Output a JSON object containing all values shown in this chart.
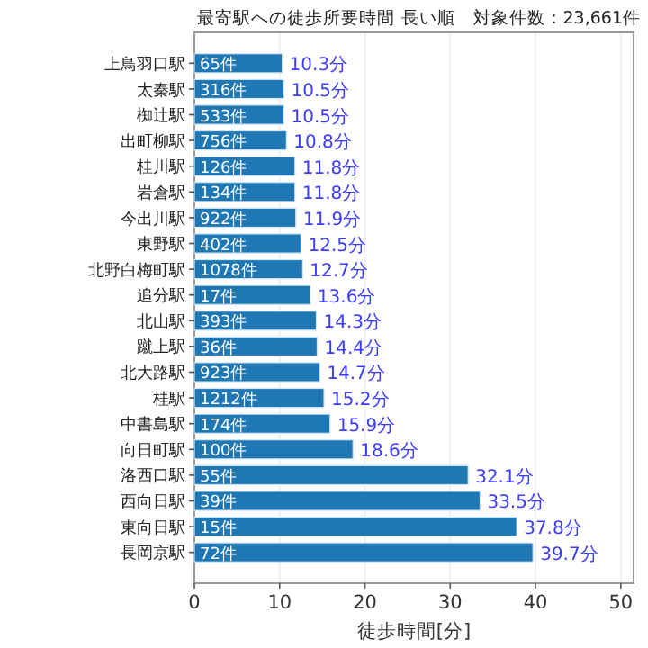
{
  "chart_data": {
    "type": "bar",
    "orientation": "horizontal",
    "title": "最寄駅への徒歩所要時間 長い順　対象件数：23,661件",
    "xlabel": "徒歩時間[分]",
    "categories": [
      "上鳥羽口駅",
      "太秦駅",
      "椥辻駅",
      "出町柳駅",
      "桂川駅",
      "岩倉駅",
      "今出川駅",
      "東野駅",
      "北野白梅町駅",
      "追分駅",
      "北山駅",
      "蹴上駅",
      "北大路駅",
      "桂駅",
      "中書島駅",
      "向日町駅",
      "洛西口駅",
      "西向日駅",
      "東向日駅",
      "長岡京駅"
    ],
    "values": [
      10.3,
      10.5,
      10.5,
      10.8,
      11.8,
      11.8,
      11.9,
      12.5,
      12.7,
      13.6,
      14.3,
      14.4,
      14.7,
      15.2,
      15.9,
      18.6,
      32.1,
      33.5,
      37.8,
      39.7
    ],
    "value_labels": [
      "10.3分",
      "10.5分",
      "10.5分",
      "10.8分",
      "11.8分",
      "11.8分",
      "11.9分",
      "12.5分",
      "12.7分",
      "13.6分",
      "14.3分",
      "14.4分",
      "14.7分",
      "15.2分",
      "15.9分",
      "18.6分",
      "32.1分",
      "33.5分",
      "37.8分",
      "39.7分"
    ],
    "color": "#1f77b4",
    "xlim": [
      0,
      51.5
    ],
    "xticks": [
      0,
      10,
      20,
      30,
      40,
      50
    ],
    "grid": "x",
    "annotations": [
      {
        "text": "65件",
        "y": "上鳥羽口駅"
      },
      {
        "text": "316件",
        "y": "太秦駅"
      },
      {
        "text": "533件",
        "y": "椥辻駅"
      },
      {
        "text": "756件",
        "y": "出町柳駅"
      },
      {
        "text": "126件",
        "y": "桂川駅"
      },
      {
        "text": "134件",
        "y": "岩倉駅"
      },
      {
        "text": "922件",
        "y": "今出川駅"
      },
      {
        "text": "402件",
        "y": "東野駅"
      },
      {
        "text": "1078件",
        "y": "北野白梅町駅"
      },
      {
        "text": "17件",
        "y": "追分駅"
      },
      {
        "text": "393件",
        "y": "北山駅"
      },
      {
        "text": "36件",
        "y": "蹴上駅"
      },
      {
        "text": "923件",
        "y": "北大路駅"
      },
      {
        "text": "1212件",
        "y": "桂駅"
      },
      {
        "text": "174件",
        "y": "中書島駅"
      },
      {
        "text": "100件",
        "y": "向日町駅"
      },
      {
        "text": "55件",
        "y": "洛西口駅"
      },
      {
        "text": "39件",
        "y": "西向日駅"
      },
      {
        "text": "15件",
        "y": "東向日駅"
      },
      {
        "text": "72件",
        "y": "長岡京駅"
      }
    ]
  }
}
